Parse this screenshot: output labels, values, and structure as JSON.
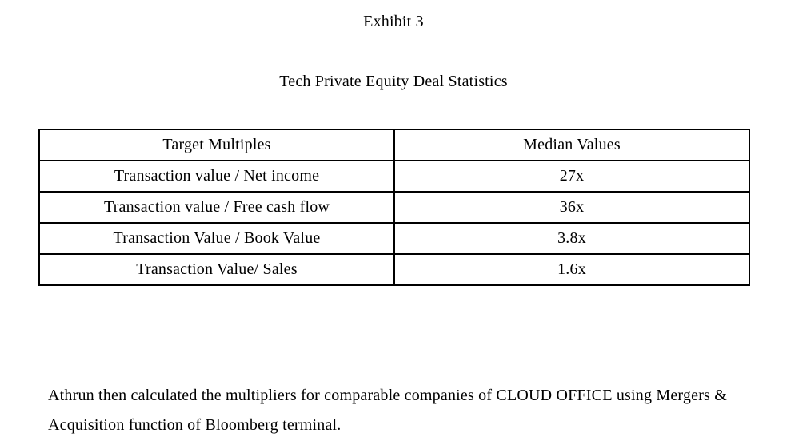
{
  "page": {
    "exhibit_label": "Exhibit 3",
    "subtitle": "Tech Private Equity Deal Statistics"
  },
  "table": {
    "headers": [
      "Target Multiples",
      "Median Values"
    ],
    "rows": [
      {
        "multiple": "Transaction value / Net income",
        "median": "27x"
      },
      {
        "multiple": "Transaction value / Free cash flow",
        "median": "36x"
      },
      {
        "multiple": "Transaction Value / Book Value",
        "median": "3.8x"
      },
      {
        "multiple": "Transaction Value/ Sales",
        "median": "1.6x"
      }
    ]
  },
  "paragraph": {
    "text": "Athrun then calculated the multipliers for comparable companies of CLOUD OFFICE using Mergers & Acquisition function of Bloomberg terminal."
  },
  "colors": {
    "background": "#ffffff",
    "text": "#000000",
    "table_border": "#000000"
  }
}
